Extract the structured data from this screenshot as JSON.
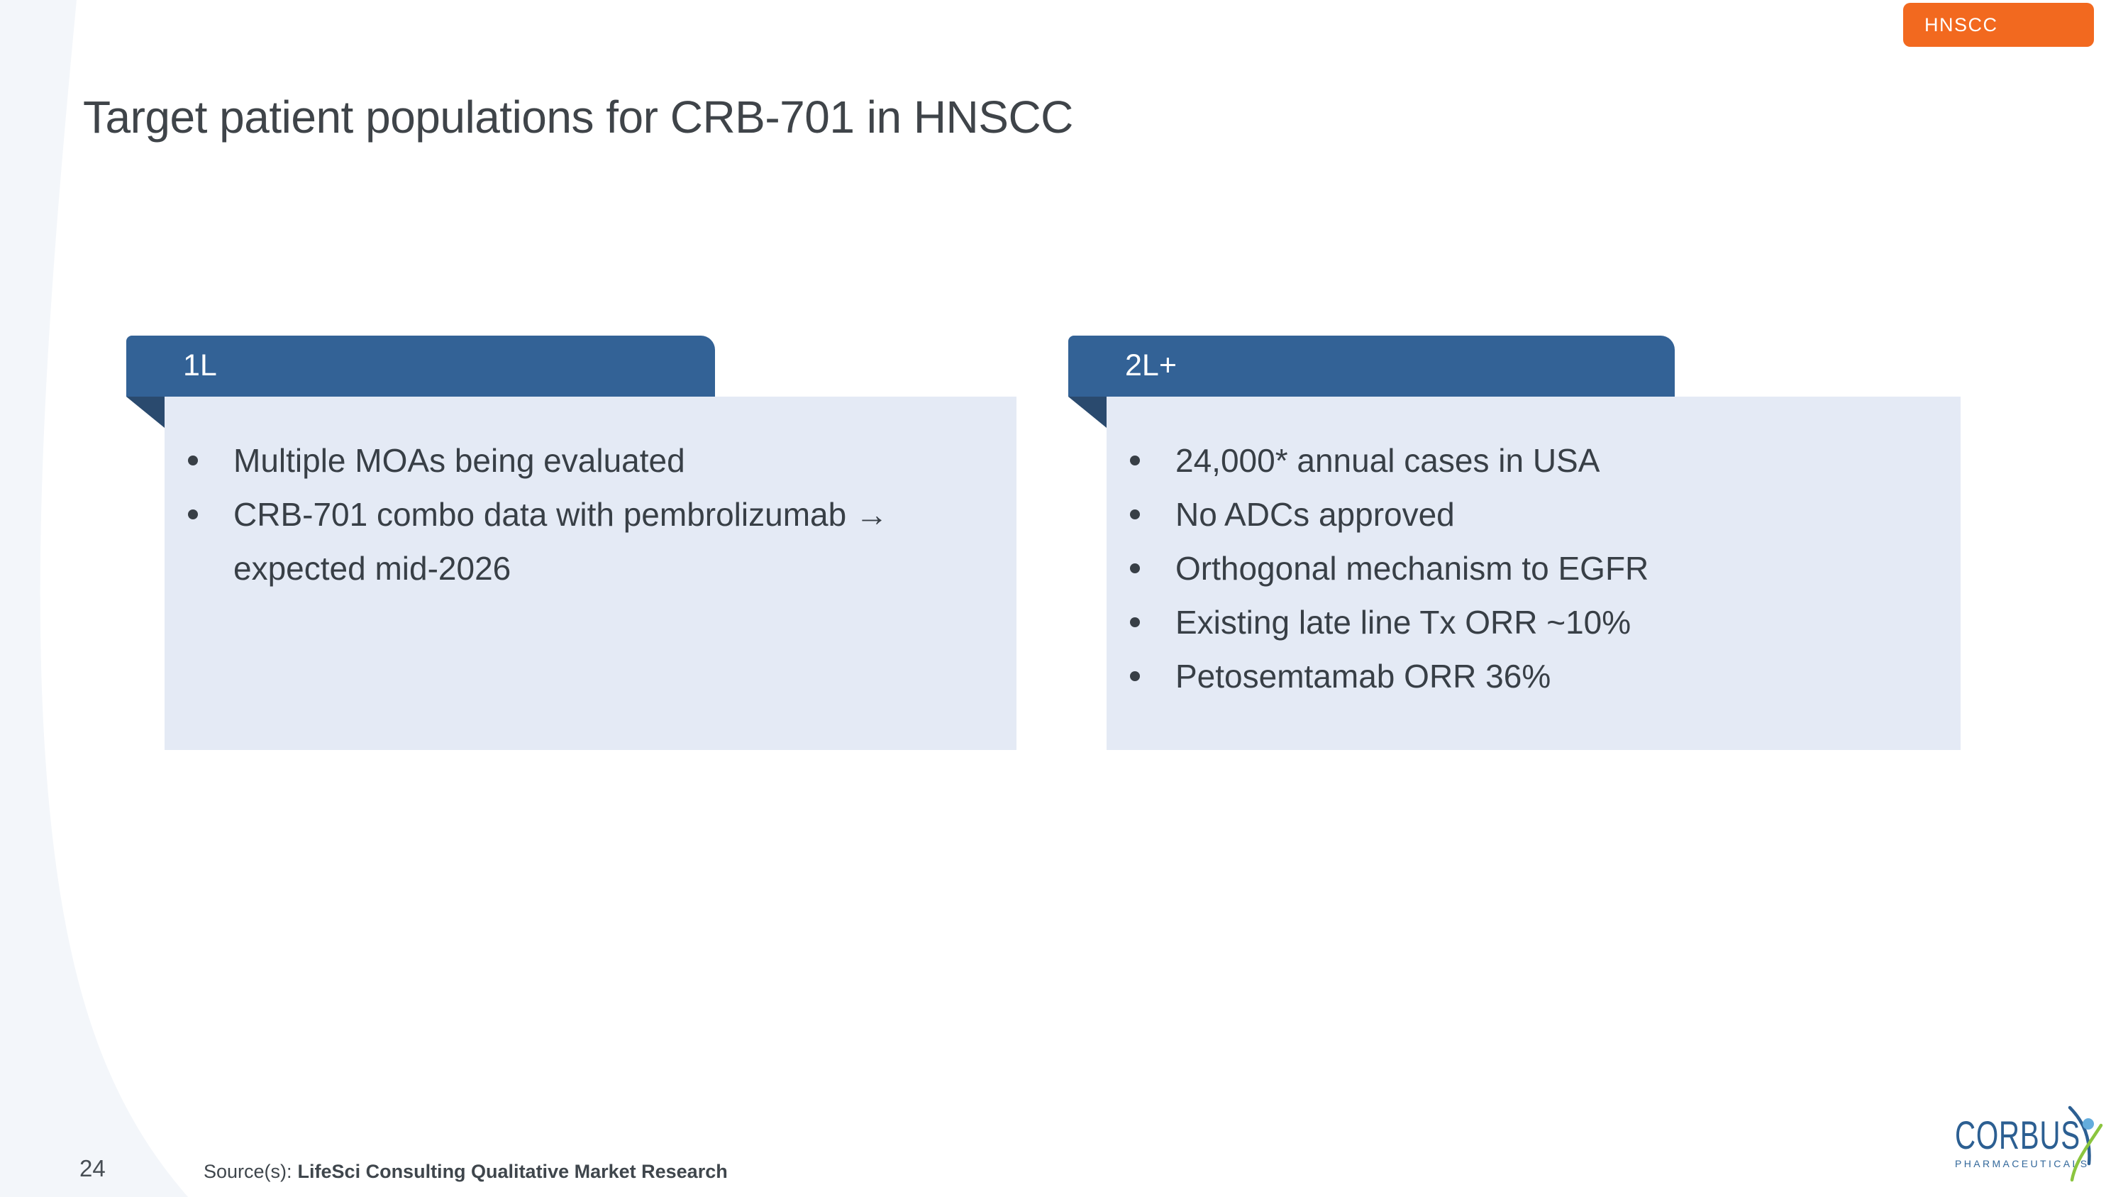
{
  "slide": {
    "badge": "HNSCC",
    "title": "Target patient populations for CRB-701 in HNSCC",
    "page_number": "24",
    "source_prefix": "Source(s):",
    "source_text": "LifeSci Consulting Qualitative Market Research"
  },
  "panels": [
    {
      "tab": "1L",
      "bullets": [
        "Multiple MOAs being evaluated",
        "CRB-701 combo data with pembrolizumab →\nexpected mid-2026"
      ]
    },
    {
      "tab": "2L+",
      "bullets": [
        "24,000* annual cases in USA",
        "No ADCs approved",
        "Orthogonal mechanism to EGFR",
        "Existing late line Tx ORR ~10%",
        "Petosemtamab ORR 36%"
      ]
    }
  ],
  "logo": {
    "name": "CORBUS",
    "subtitle": "PHARMACEUTICALS"
  },
  "colors": {
    "badge_bg": "#F2691F",
    "tab_bg": "#336296",
    "fold_bg": "#2A4A6E",
    "panel_bg": "#E4EAF5",
    "title_text": "#3F4449",
    "bullet_text": "#383F46",
    "swoosh": "#F3F6FA",
    "logo_blue": "#2C5F92",
    "logo_green": "#8BC53F",
    "logo_head": "#64ACDC"
  }
}
